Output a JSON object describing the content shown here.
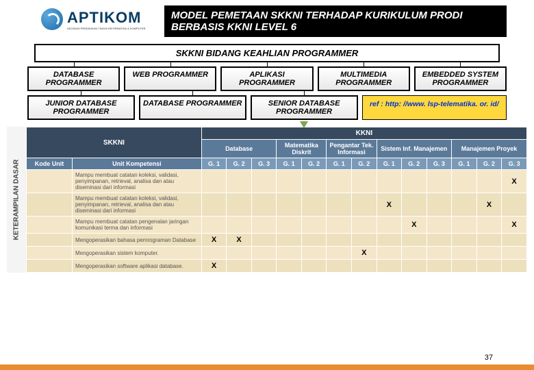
{
  "logo": {
    "name": "APTIKOM"
  },
  "title": "MODEL PEMETAAN SKKNI TERHADAP KURIKULUM PRODI BERBASIS KKNI LEVEL 6",
  "section": "SKKNI BIDANG KEAHLIAN PROGRAMMER",
  "cats_row1": [
    "DATABASE PROGRAMMER",
    "WEB PROGRAMMER",
    "APLIKASI PROGRAMMER",
    "MULTIMEDIA PROGRAMMER",
    "EMBEDDED SYSTEM PROGRAMMER"
  ],
  "cats_row2": [
    "JUNIOR DATABASE PROGRAMMER",
    "DATABASE PROGRAMMER",
    "SENIOR DATABASE PROGRAMMER"
  ],
  "ref": "ref : http: //www. lsp-telematika. or. id/",
  "side_label": "KETERAMPILAN DASAR",
  "table": {
    "top_left": "SKKNI",
    "top_right": "KKNI",
    "h_kode": "Kode Unit",
    "h_unit": "Unit Kompetensi",
    "subjects": [
      "Database",
      "Matematika Diskrit",
      "Pengantar Tek. Informasi",
      "Sistem Inf. Manajemen",
      "Manajemen Proyek"
    ],
    "g_labels": [
      "G. 1",
      "G. 2",
      "G. 3",
      "G. 1",
      "G. 2",
      "G. 1",
      "G. 2",
      "G. 1",
      "G. 2",
      "G. 3",
      "G. 1",
      "G. 2",
      "G. 3"
    ],
    "rows": [
      {
        "unit": "Mampu membuat catatan koleksi, validasi, penyimpanan, retrieval, analisa dan atau diseminasi dari informasi",
        "x": [
          0,
          0,
          0,
          0,
          0,
          0,
          0,
          0,
          0,
          0,
          0,
          0,
          1
        ]
      },
      {
        "unit": "Mampu membuat catatan koleksi, validasi, penyimpanan, retrieval, analisa dan atau diseminasi dari informasi",
        "x": [
          0,
          0,
          0,
          0,
          0,
          0,
          0,
          1,
          0,
          0,
          0,
          1,
          0
        ]
      },
      {
        "unit": "Mampu membuat catatan pengenalan jaringan komunikasi terma dan informasi",
        "x": [
          0,
          0,
          0,
          0,
          0,
          0,
          0,
          0,
          1,
          0,
          0,
          0,
          1
        ]
      },
      {
        "unit": "Mengoperasikan bahasa pemrograman Database",
        "x": [
          1,
          1,
          0,
          0,
          0,
          0,
          0,
          0,
          0,
          0,
          0,
          0,
          0
        ]
      },
      {
        "unit": "Mengoperasikan sistem komputer.",
        "x": [
          0,
          0,
          0,
          0,
          0,
          0,
          1,
          0,
          0,
          0,
          0,
          0,
          0
        ]
      },
      {
        "unit": "Mengoperasikan software aplikasi database.",
        "x": [
          1,
          0,
          0,
          0,
          0,
          0,
          0,
          0,
          0,
          0,
          0,
          0,
          0
        ]
      }
    ]
  },
  "page": "37"
}
